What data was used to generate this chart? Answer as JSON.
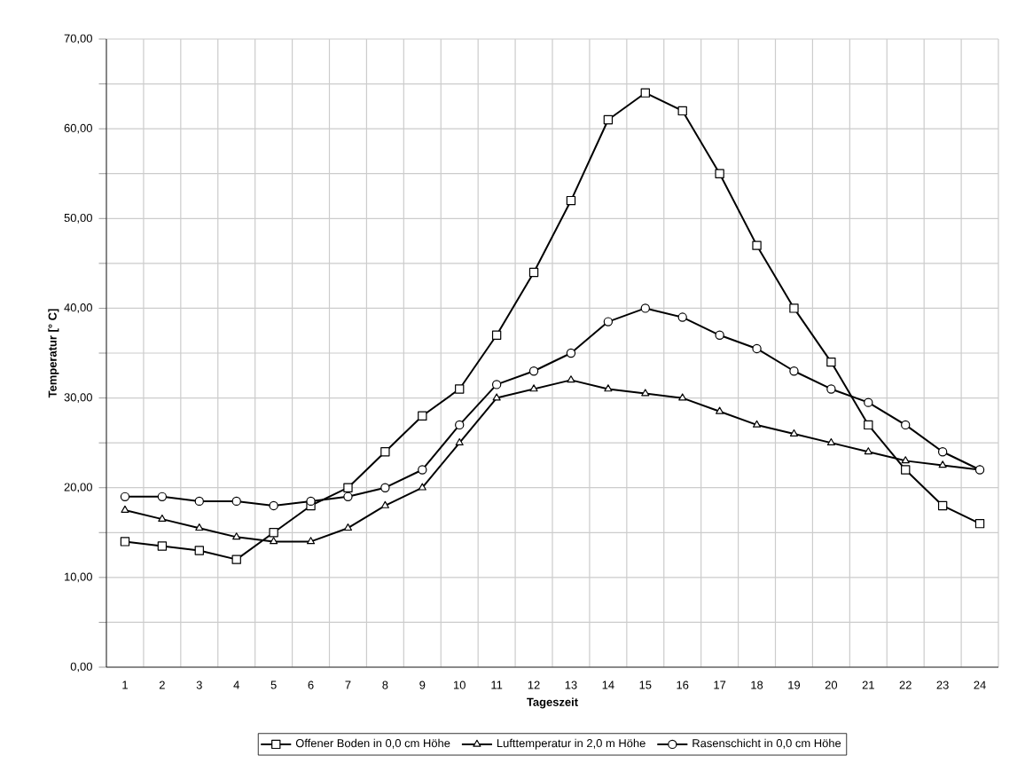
{
  "chart_data": {
    "type": "line",
    "xlabel": "Tageszeit",
    "ylabel": "Temperatur [° C]",
    "categories": [
      "1",
      "2",
      "3",
      "4",
      "5",
      "6",
      "7",
      "8",
      "9",
      "10",
      "11",
      "12",
      "13",
      "14",
      "15",
      "16",
      "17",
      "18",
      "19",
      "20",
      "21",
      "22",
      "23",
      "24"
    ],
    "series": [
      {
        "name": "Offener Boden in 0,0 cm Höhe",
        "color": "#000000",
        "marker": "square",
        "values": [
          14,
          13.5,
          13,
          12,
          15,
          18,
          20,
          24,
          28,
          31,
          37,
          44,
          52,
          61,
          64,
          62,
          55,
          47,
          40,
          34,
          27,
          22,
          18,
          16
        ]
      },
      {
        "name": "Lufttemperatur in 2,0 m Höhe",
        "color": "#000000",
        "marker": "triangle",
        "values": [
          17.5,
          16.5,
          15.5,
          14.5,
          14,
          14,
          15.5,
          18,
          20,
          25,
          30,
          31,
          32,
          31,
          30.5,
          30,
          28.5,
          27,
          26,
          25,
          24,
          23,
          22.5,
          22
        ]
      },
      {
        "name": "Rasenschicht in 0,0 cm Höhe",
        "color": "#000000",
        "marker": "circle",
        "values": [
          19,
          19,
          18.5,
          18.5,
          18,
          18.5,
          19,
          20,
          22,
          27,
          31.5,
          33,
          35,
          38.5,
          40,
          39,
          37,
          35.5,
          33,
          31,
          29.5,
          27,
          24,
          22
        ]
      }
    ],
    "ylim": [
      0,
      70
    ],
    "yticks": [
      {
        "value": 0,
        "label": "0,00"
      },
      {
        "value": 5,
        "label": null
      },
      {
        "value": 10,
        "label": "10,00"
      },
      {
        "value": 15,
        "label": null
      },
      {
        "value": 20,
        "label": "20,00"
      },
      {
        "value": 25,
        "label": null
      },
      {
        "value": 30,
        "label": "30,00"
      },
      {
        "value": 35,
        "label": null
      },
      {
        "value": 40,
        "label": "40,00"
      },
      {
        "value": 45,
        "label": null
      },
      {
        "value": 50,
        "label": "50,00"
      },
      {
        "value": 55,
        "label": null
      },
      {
        "value": 60,
        "label": "60,00"
      },
      {
        "value": 65,
        "label": null
      },
      {
        "value": 70,
        "label": "70,00"
      }
    ],
    "grid": true,
    "legend": "bottom",
    "line_style": "solid"
  }
}
